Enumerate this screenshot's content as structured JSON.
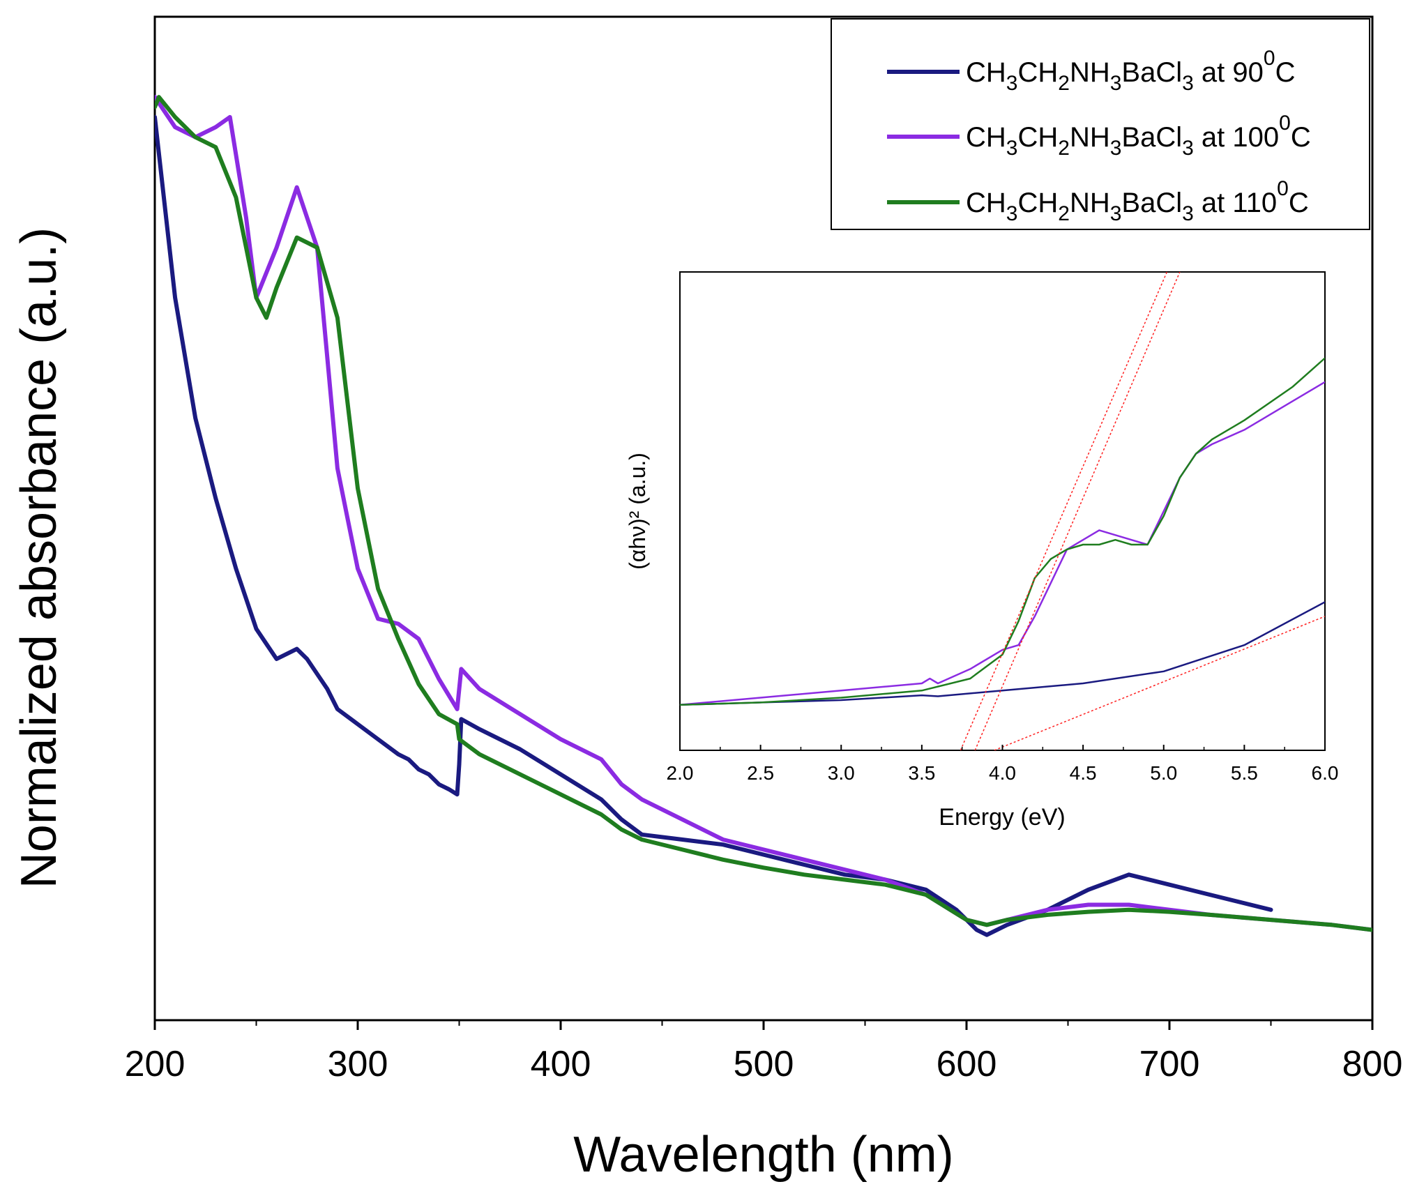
{
  "chart_data": [
    {
      "type": "line",
      "xlabel": "Wavelength (nm)",
      "ylabel": "Normalized absorbance (a.u.)",
      "xlim": [
        200,
        800
      ],
      "ylim": [
        0,
        1
      ],
      "xticks": [
        "200",
        "300",
        "400",
        "500",
        "600",
        "700",
        "800"
      ],
      "legend_position": "top-right",
      "series": [
        {
          "name": "CH3CH2NH3BaCl3 at 90 0C",
          "legend": {
            "prefix": "CH",
            "s1": "3",
            "m1": "CH",
            "s2": "2",
            "m2": "NH",
            "s3": "3",
            "m3": "BaCl",
            "s4": "3",
            "temp": " at 90",
            "deg": "0",
            "unit": "C"
          },
          "color": "#1a1a80",
          "x": [
            200,
            210,
            220,
            230,
            240,
            250,
            260,
            265,
            270,
            275,
            280,
            285,
            290,
            300,
            310,
            320,
            325,
            330,
            335,
            340,
            345,
            349,
            350,
            351,
            360,
            380,
            400,
            420,
            430,
            440,
            460,
            480,
            500,
            520,
            540,
            560,
            580,
            595,
            605,
            610,
            620,
            640,
            660,
            680,
            700,
            720,
            750
          ],
          "y": [
            0.9,
            0.72,
            0.6,
            0.52,
            0.45,
            0.39,
            0.36,
            0.365,
            0.37,
            0.36,
            0.345,
            0.33,
            0.31,
            0.295,
            0.28,
            0.265,
            0.26,
            0.25,
            0.245,
            0.235,
            0.23,
            0.225,
            0.255,
            0.3,
            0.29,
            0.27,
            0.245,
            0.22,
            0.2,
            0.185,
            0.18,
            0.175,
            0.165,
            0.155,
            0.145,
            0.14,
            0.13,
            0.11,
            0.09,
            0.085,
            0.095,
            0.11,
            0.13,
            0.145,
            0.135,
            0.125,
            0.11
          ]
        },
        {
          "name": "CH3CH2NH3BaCl3 at 100 0C",
          "legend": {
            "prefix": "CH",
            "s1": "3",
            "m1": "CH",
            "s2": "2",
            "m2": "NH",
            "s3": "3",
            "m3": "BaCl",
            "s4": "3",
            "temp": " at 100",
            "deg": "0",
            "unit": "C"
          },
          "color": "#8b2be2",
          "x": [
            200,
            210,
            220,
            230,
            237,
            245,
            250,
            260,
            270,
            280,
            285,
            290,
            295,
            300,
            310,
            320,
            330,
            340,
            349,
            350,
            351,
            360,
            380,
            400,
            420,
            430,
            440,
            460,
            480,
            500,
            520,
            540,
            560,
            580,
            600,
            610,
            620,
            640,
            660,
            680,
            700,
            720,
            750,
            780,
            800
          ],
          "y": [
            0.92,
            0.89,
            0.88,
            0.89,
            0.9,
            0.8,
            0.72,
            0.77,
            0.83,
            0.77,
            0.66,
            0.55,
            0.5,
            0.45,
            0.4,
            0.395,
            0.38,
            0.34,
            0.31,
            0.33,
            0.35,
            0.33,
            0.305,
            0.28,
            0.26,
            0.235,
            0.22,
            0.2,
            0.18,
            0.17,
            0.16,
            0.15,
            0.14,
            0.125,
            0.1,
            0.095,
            0.1,
            0.11,
            0.115,
            0.115,
            0.11,
            0.105,
            0.1,
            0.095,
            0.09
          ]
        },
        {
          "name": "CH3CH2NH3BaCl3 at 110 0C",
          "legend": {
            "prefix": "CH",
            "s1": "3",
            "m1": "CH",
            "s2": "2",
            "m2": "NH",
            "s3": "3",
            "m3": "BaCl",
            "s4": "3",
            "temp": " at 110",
            "deg": "0",
            "unit": "C"
          },
          "color": "#1f7d1f",
          "x": [
            200,
            202,
            210,
            220,
            230,
            240,
            250,
            255,
            260,
            270,
            280,
            290,
            300,
            310,
            320,
            330,
            340,
            349,
            350,
            360,
            380,
            400,
            420,
            430,
            440,
            460,
            480,
            500,
            520,
            540,
            560,
            580,
            600,
            610,
            620,
            640,
            660,
            680,
            700,
            720,
            750,
            780,
            800
          ],
          "y": [
            0.91,
            0.92,
            0.9,
            0.88,
            0.87,
            0.82,
            0.72,
            0.7,
            0.73,
            0.78,
            0.77,
            0.7,
            0.53,
            0.43,
            0.38,
            0.335,
            0.305,
            0.295,
            0.28,
            0.265,
            0.245,
            0.225,
            0.205,
            0.19,
            0.18,
            0.17,
            0.16,
            0.152,
            0.145,
            0.14,
            0.135,
            0.125,
            0.1,
            0.095,
            0.1,
            0.105,
            0.108,
            0.11,
            0.108,
            0.105,
            0.1,
            0.095,
            0.09
          ]
        }
      ]
    },
    {
      "type": "line",
      "xlabel": "Energy (eV)",
      "ylabel": "(αhν)² (a.u.)",
      "xlim": [
        2.0,
        6.0
      ],
      "ylim": [
        0,
        1
      ],
      "xticks": [
        "2.0",
        "2.5",
        "3.0",
        "3.5",
        "4.0",
        "4.5",
        "5.0",
        "5.5",
        "6.0"
      ],
      "series": [
        {
          "name": "90 0C",
          "color": "#1a1a80",
          "x": [
            2.0,
            2.5,
            3.0,
            3.5,
            3.6,
            4.0,
            4.5,
            5.0,
            5.5,
            6.0
          ],
          "y": [
            0.095,
            0.1,
            0.105,
            0.115,
            0.113,
            0.125,
            0.14,
            0.165,
            0.22,
            0.31
          ]
        },
        {
          "name": "100 0C",
          "color": "#8b2be2",
          "x": [
            2.0,
            2.5,
            3.0,
            3.5,
            3.55,
            3.6,
            3.8,
            4.0,
            4.1,
            4.2,
            4.3,
            4.4,
            4.5,
            4.6,
            4.7,
            4.8,
            4.9,
            5.0,
            5.1,
            5.2,
            5.3,
            5.5,
            5.8,
            6.0
          ],
          "y": [
            0.095,
            0.11,
            0.125,
            0.14,
            0.15,
            0.14,
            0.17,
            0.21,
            0.22,
            0.28,
            0.35,
            0.42,
            0.44,
            0.46,
            0.45,
            0.44,
            0.43,
            0.5,
            0.57,
            0.62,
            0.64,
            0.67,
            0.73,
            0.77
          ]
        },
        {
          "name": "110 0C",
          "color": "#1f7d1f",
          "x": [
            2.0,
            2.5,
            3.0,
            3.5,
            3.8,
            4.0,
            4.1,
            4.2,
            4.3,
            4.4,
            4.5,
            4.6,
            4.7,
            4.8,
            4.9,
            5.0,
            5.1,
            5.2,
            5.3,
            5.5,
            5.8,
            5.9,
            6.0
          ],
          "y": [
            0.095,
            0.1,
            0.11,
            0.125,
            0.15,
            0.2,
            0.27,
            0.36,
            0.4,
            0.42,
            0.43,
            0.43,
            0.44,
            0.43,
            0.43,
            0.49,
            0.57,
            0.62,
            0.65,
            0.69,
            0.76,
            0.79,
            0.82
          ]
        },
        {
          "name": "fit-90",
          "color": "#ff2020",
          "dashed": true,
          "x": [
            3.95,
            6.0
          ],
          "y": [
            0.0,
            0.28
          ]
        },
        {
          "name": "fit-100",
          "color": "#ff2020",
          "dashed": true,
          "x": [
            3.83,
            5.1
          ],
          "y": [
            0.0,
            1.0
          ]
        },
        {
          "name": "fit-110",
          "color": "#ff2020",
          "dashed": true,
          "x": [
            3.74,
            5.02
          ],
          "y": [
            0.0,
            1.0
          ]
        }
      ]
    }
  ]
}
